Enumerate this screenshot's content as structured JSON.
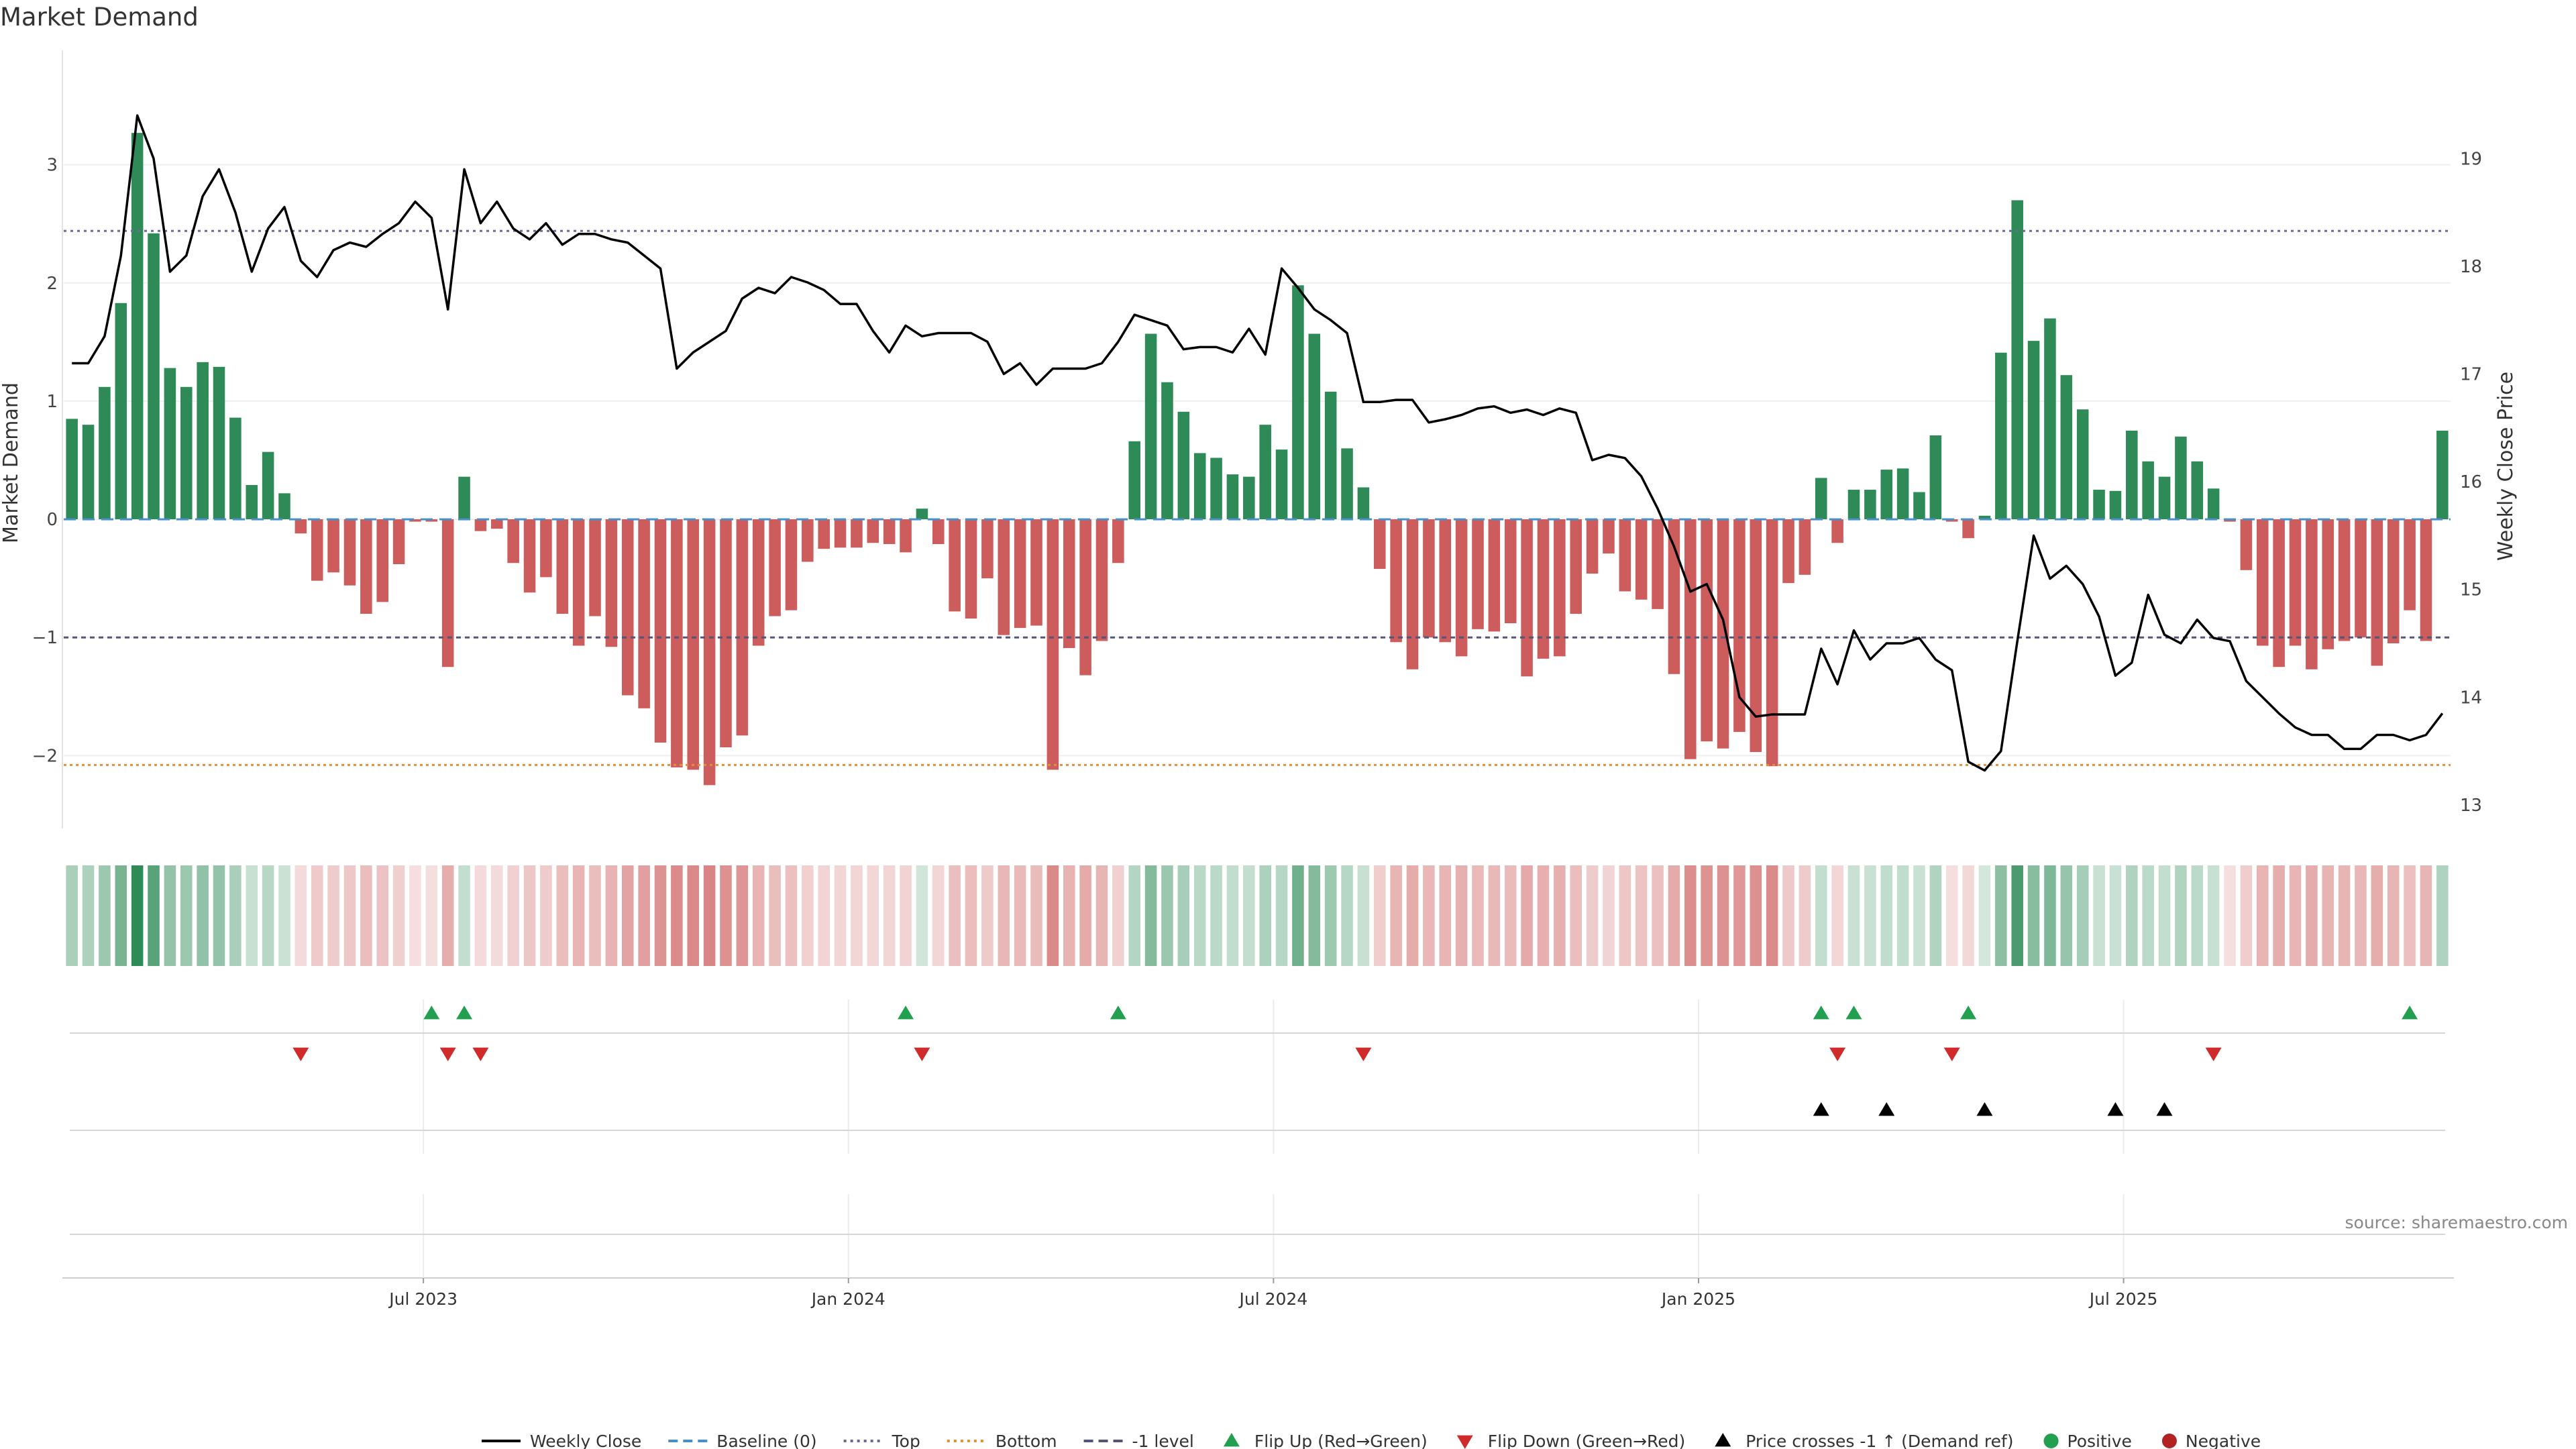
{
  "title": "Market Demand",
  "source_note": "source: sharemaestro.com",
  "colors": {
    "positive_bar": "#2e8b57",
    "negative_bar": "#cd5c5c",
    "price_line": "#000000",
    "baseline": "#4a90c8",
    "top_line": "#6a6a9a",
    "bottom_line": "#e0913a",
    "minus_one_line": "#555577",
    "flip_up": "#22a050",
    "flip_down": "#d12a2a",
    "cross_marker": "#000000",
    "positive_dot": "#22a050",
    "negative_dot": "#b22222"
  },
  "chart_data": {
    "type": "bar",
    "title": "Market Demand",
    "xlabel": "",
    "ylabel": "Market Demand",
    "y2label": "Weekly Close Price",
    "ylim": [
      -2.6,
      3.6
    ],
    "y2lim": [
      12.8,
      19.6
    ],
    "yticks": [
      3,
      2,
      1,
      0,
      -1,
      -2
    ],
    "ytick_labels": [
      "3",
      "2",
      "1",
      "0",
      "−1",
      "−2"
    ],
    "y2ticks": [
      19,
      18,
      17,
      16,
      15,
      14,
      13
    ],
    "x_start": "2023-03-06",
    "x_interval": "weekly",
    "xtick_labels": [
      "Jul 2023",
      "Jan 2024",
      "Jul 2024",
      "Jan 2025",
      "Jul 2025"
    ],
    "xtick_index": [
      22,
      48,
      74,
      100,
      126
    ],
    "reference_lines": {
      "top": 2.44,
      "baseline": 0,
      "minus_one": -1,
      "bottom": -2.08
    },
    "series": [
      {
        "name": "Market Demand",
        "type": "bar",
        "values": [
          0.85,
          0.8,
          1.12,
          1.83,
          3.27,
          2.42,
          1.28,
          1.12,
          1.33,
          1.29,
          0.86,
          0.29,
          0.57,
          0.22,
          -0.12,
          -0.52,
          -0.45,
          -0.56,
          -0.8,
          -0.7,
          -0.38,
          -0.02,
          -0.02,
          -1.25,
          0.36,
          -0.1,
          -0.08,
          -0.37,
          -0.62,
          -0.49,
          -0.8,
          -1.07,
          -0.82,
          -1.08,
          -1.49,
          -1.6,
          -1.89,
          -2.1,
          -2.12,
          -2.25,
          -1.93,
          -1.83,
          -1.07,
          -0.82,
          -0.77,
          -0.36,
          -0.25,
          -0.24,
          -0.24,
          -0.2,
          -0.21,
          -0.28,
          0.09,
          -0.21,
          -0.78,
          -0.84,
          -0.5,
          -0.98,
          -0.92,
          -0.9,
          -2.12,
          -1.09,
          -1.32,
          -1.03,
          -0.37,
          0.66,
          1.57,
          1.16,
          0.91,
          0.56,
          0.52,
          0.38,
          0.36,
          0.8,
          0.59,
          1.98,
          1.57,
          1.08,
          0.6,
          0.27,
          -0.42,
          -1.04,
          -1.27,
          -1.0,
          -1.04,
          -1.16,
          -0.93,
          -0.95,
          -0.88,
          -1.33,
          -1.18,
          -1.16,
          -0.8,
          -0.46,
          -0.29,
          -0.61,
          -0.68,
          -0.76,
          -1.31,
          -2.03,
          -1.88,
          -1.94,
          -1.8,
          -1.97,
          -2.09,
          -0.54,
          -0.47,
          0.35,
          -0.2,
          0.25,
          0.25,
          0.42,
          0.43,
          0.23,
          0.71,
          -0.02,
          -0.16,
          0.03,
          1.41,
          2.7,
          1.51,
          1.7,
          1.22,
          0.93,
          0.25,
          0.24,
          0.75,
          0.49,
          0.36,
          0.7,
          0.49,
          0.26,
          -0.02,
          -0.43,
          -1.07,
          -1.25,
          -1.07,
          -1.27,
          -1.1,
          -1.03,
          -1.0,
          -1.24,
          -1.05,
          -0.77,
          -1.03,
          0.75
        ]
      },
      {
        "name": "Weekly Close",
        "type": "line",
        "axis": "right",
        "values": [
          17.1,
          17.1,
          17.35,
          18.1,
          19.4,
          19.0,
          17.95,
          18.1,
          18.65,
          18.9,
          18.5,
          17.95,
          18.35,
          18.55,
          18.05,
          17.9,
          18.15,
          18.22,
          18.18,
          18.3,
          18.4,
          18.6,
          18.45,
          17.6,
          18.9,
          18.4,
          18.6,
          18.35,
          18.25,
          18.4,
          18.2,
          18.3,
          18.3,
          18.25,
          18.22,
          18.1,
          17.98,
          17.05,
          17.2,
          17.3,
          17.4,
          17.7,
          17.8,
          17.75,
          17.9,
          17.85,
          17.78,
          17.65,
          17.65,
          17.4,
          17.2,
          17.45,
          17.35,
          17.38,
          17.38,
          17.38,
          17.3,
          17.0,
          17.1,
          16.9,
          17.05,
          17.05,
          17.05,
          17.1,
          17.3,
          17.55,
          17.5,
          17.45,
          17.23,
          17.25,
          17.25,
          17.2,
          17.42,
          17.18,
          17.98,
          17.8,
          17.6,
          17.5,
          17.38,
          16.74,
          16.74,
          16.76,
          16.76,
          16.55,
          16.58,
          16.62,
          16.68,
          16.7,
          16.64,
          16.67,
          16.62,
          16.68,
          16.64,
          16.2,
          16.25,
          16.22,
          16.05,
          15.75,
          15.4,
          14.98,
          15.05,
          14.72,
          14.0,
          13.82,
          13.84,
          13.84,
          13.84,
          14.45,
          14.12,
          14.62,
          14.35,
          14.5,
          14.5,
          14.55,
          14.35,
          14.25,
          13.4,
          13.32,
          13.5,
          14.52,
          15.5,
          15.1,
          15.22,
          15.05,
          14.75,
          14.2,
          14.32,
          14.95,
          14.58,
          14.5,
          14.72,
          14.55,
          14.52,
          14.15,
          14.0,
          13.85,
          13.72,
          13.65,
          13.65,
          13.52,
          13.52,
          13.65,
          13.65,
          13.6,
          13.65,
          13.85
        ]
      }
    ],
    "tile_strip": {
      "name": "Demand heat strip",
      "source": "Market Demand"
    },
    "event_rows": [
      {
        "name": "Flip Up (Red→Green)",
        "marker": "triangle-up",
        "color": "flip_up",
        "indices": [
          22,
          24,
          51,
          64,
          107,
          109,
          116,
          143
        ]
      },
      {
        "name": "Flip Down (Green→Red)",
        "marker": "triangle-down",
        "color": "flip_down",
        "indices": [
          14,
          23,
          25,
          52,
          79,
          108,
          115,
          131
        ]
      },
      {
        "name": "Price crosses -1 ↑ (Demand ref)",
        "marker": "triangle-up",
        "color": "cross_marker",
        "indices": [
          107,
          111,
          117,
          125,
          128
        ]
      }
    ],
    "legend_position": "bottom-center",
    "legend": [
      {
        "label": "Weekly Close",
        "symbol": "line-solid",
        "color": "price_line"
      },
      {
        "label": "Baseline (0)",
        "symbol": "line-dashed",
        "color": "baseline"
      },
      {
        "label": "Top",
        "symbol": "line-dotted",
        "color": "top_line"
      },
      {
        "label": "Bottom",
        "symbol": "line-dotted",
        "color": "bottom_line"
      },
      {
        "label": "-1 level",
        "symbol": "line-dashed",
        "color": "minus_one_line"
      },
      {
        "label": "Flip Up (Red→Green)",
        "symbol": "triangle-up",
        "color": "flip_up"
      },
      {
        "label": "Flip Down (Green→Red)",
        "symbol": "triangle-down",
        "color": "flip_down"
      },
      {
        "label": "Price crosses -1 ↑ (Demand ref)",
        "symbol": "triangle-up",
        "color": "cross_marker"
      },
      {
        "label": "Positive",
        "symbol": "dot",
        "color": "positive_dot"
      },
      {
        "label": "Negative",
        "symbol": "dot",
        "color": "negative_dot"
      }
    ]
  }
}
